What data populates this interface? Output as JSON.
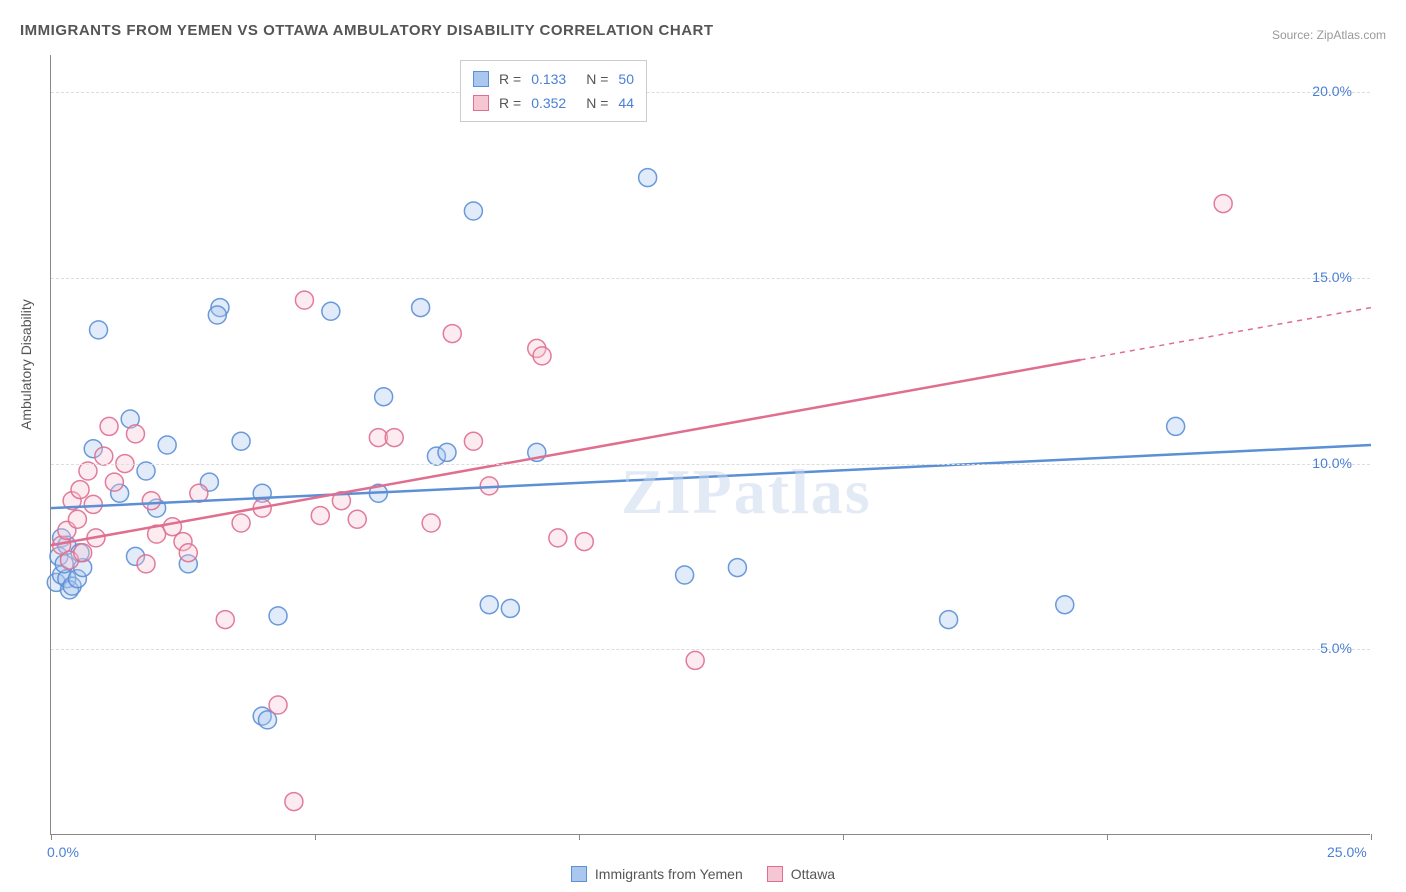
{
  "title": "IMMIGRANTS FROM YEMEN VS OTTAWA AMBULATORY DISABILITY CORRELATION CHART",
  "source": "Source: ZipAtlas.com",
  "ylabel": "Ambulatory Disability",
  "watermark_bold": "ZIP",
  "watermark_light": "atlas",
  "chart": {
    "type": "scatter",
    "background_color": "#ffffff",
    "grid_color": "#dddddd",
    "axis_color": "#888888",
    "xlim": [
      0,
      25
    ],
    "ylim": [
      0,
      21
    ],
    "x_ticks": [
      0,
      5,
      10,
      15,
      20,
      25
    ],
    "x_tick_labels": [
      "0.0%",
      "",
      "",
      "",
      "",
      "25.0%"
    ],
    "y_ticks": [
      5,
      10,
      15,
      20
    ],
    "y_tick_labels": [
      "5.0%",
      "10.0%",
      "15.0%",
      "20.0%"
    ],
    "marker_radius": 9,
    "marker_fill_opacity": 0.35,
    "marker_stroke_opacity": 0.9,
    "line_width": 2.5,
    "label_fontsize": 14,
    "title_fontsize": 15,
    "tick_color": "#4a7fd6",
    "series": [
      {
        "name": "Immigrants from Yemen",
        "key": "yemen",
        "color_fill": "#a9c7ef",
        "color_stroke": "#5b8fd6",
        "r": 0.133,
        "n": 50,
        "trend": {
          "x1": 0,
          "y1": 8.8,
          "x2": 25,
          "y2": 10.5,
          "solid_end_x": 25
        },
        "points": [
          [
            0.1,
            6.8
          ],
          [
            0.2,
            7.0
          ],
          [
            0.15,
            7.5
          ],
          [
            0.3,
            6.9
          ],
          [
            0.25,
            7.3
          ],
          [
            0.35,
            6.6
          ],
          [
            0.2,
            8.0
          ],
          [
            0.3,
            7.8
          ],
          [
            0.4,
            6.7
          ],
          [
            0.5,
            6.9
          ],
          [
            0.6,
            7.2
          ],
          [
            0.55,
            7.6
          ],
          [
            0.8,
            10.4
          ],
          [
            0.9,
            13.6
          ],
          [
            1.5,
            11.2
          ],
          [
            1.3,
            9.2
          ],
          [
            1.6,
            7.5
          ],
          [
            1.8,
            9.8
          ],
          [
            2.0,
            8.8
          ],
          [
            2.2,
            10.5
          ],
          [
            2.6,
            7.3
          ],
          [
            3.0,
            9.5
          ],
          [
            3.2,
            14.2
          ],
          [
            3.15,
            14.0
          ],
          [
            3.6,
            10.6
          ],
          [
            4.0,
            9.2
          ],
          [
            4.0,
            3.2
          ],
          [
            4.1,
            3.1
          ],
          [
            4.3,
            5.9
          ],
          [
            5.3,
            14.1
          ],
          [
            6.2,
            9.2
          ],
          [
            6.3,
            11.8
          ],
          [
            7.0,
            14.2
          ],
          [
            7.3,
            10.2
          ],
          [
            7.5,
            10.3
          ],
          [
            8.3,
            6.2
          ],
          [
            8.0,
            16.8
          ],
          [
            8.7,
            6.1
          ],
          [
            9.2,
            10.3
          ],
          [
            11.3,
            17.7
          ],
          [
            12.0,
            7.0
          ],
          [
            13.0,
            7.2
          ],
          [
            17.0,
            5.8
          ],
          [
            19.2,
            6.2
          ],
          [
            21.3,
            11.0
          ]
        ]
      },
      {
        "name": "Ottawa",
        "key": "ottawa",
        "color_fill": "#f5c6d3",
        "color_stroke": "#df6e8f",
        "r": 0.352,
        "n": 44,
        "trend": {
          "x1": 0,
          "y1": 7.8,
          "x2": 25,
          "y2": 14.2,
          "solid_end_x": 19.5
        },
        "points": [
          [
            0.2,
            7.8
          ],
          [
            0.3,
            8.2
          ],
          [
            0.35,
            7.4
          ],
          [
            0.4,
            9.0
          ],
          [
            0.5,
            8.5
          ],
          [
            0.55,
            9.3
          ],
          [
            0.6,
            7.6
          ],
          [
            0.7,
            9.8
          ],
          [
            0.8,
            8.9
          ],
          [
            0.85,
            8.0
          ],
          [
            1.0,
            10.2
          ],
          [
            1.1,
            11.0
          ],
          [
            1.2,
            9.5
          ],
          [
            1.4,
            10.0
          ],
          [
            1.6,
            10.8
          ],
          [
            1.8,
            7.3
          ],
          [
            1.9,
            9.0
          ],
          [
            2.0,
            8.1
          ],
          [
            2.3,
            8.3
          ],
          [
            2.5,
            7.9
          ],
          [
            2.6,
            7.6
          ],
          [
            2.8,
            9.2
          ],
          [
            3.3,
            5.8
          ],
          [
            3.6,
            8.4
          ],
          [
            4.0,
            8.8
          ],
          [
            4.3,
            3.5
          ],
          [
            4.8,
            14.4
          ],
          [
            4.6,
            0.9
          ],
          [
            5.1,
            8.6
          ],
          [
            5.5,
            9.0
          ],
          [
            5.8,
            8.5
          ],
          [
            6.2,
            10.7
          ],
          [
            6.5,
            10.7
          ],
          [
            7.2,
            8.4
          ],
          [
            7.6,
            13.5
          ],
          [
            8.0,
            10.6
          ],
          [
            8.3,
            9.4
          ],
          [
            9.2,
            13.1
          ],
          [
            9.3,
            12.9
          ],
          [
            9.6,
            8.0
          ],
          [
            10.1,
            7.9
          ],
          [
            12.2,
            4.7
          ],
          [
            22.2,
            17.0
          ]
        ]
      }
    ]
  },
  "legend_top": {
    "rows": [
      {
        "r_label": "R =",
        "r_val": "0.133",
        "n_label": "N =",
        "n_val": "50"
      },
      {
        "r_label": "R =",
        "r_val": "0.352",
        "n_label": "N =",
        "n_val": "44"
      }
    ]
  },
  "legend_bottom": {
    "items": [
      "Immigrants from Yemen",
      "Ottawa"
    ]
  }
}
